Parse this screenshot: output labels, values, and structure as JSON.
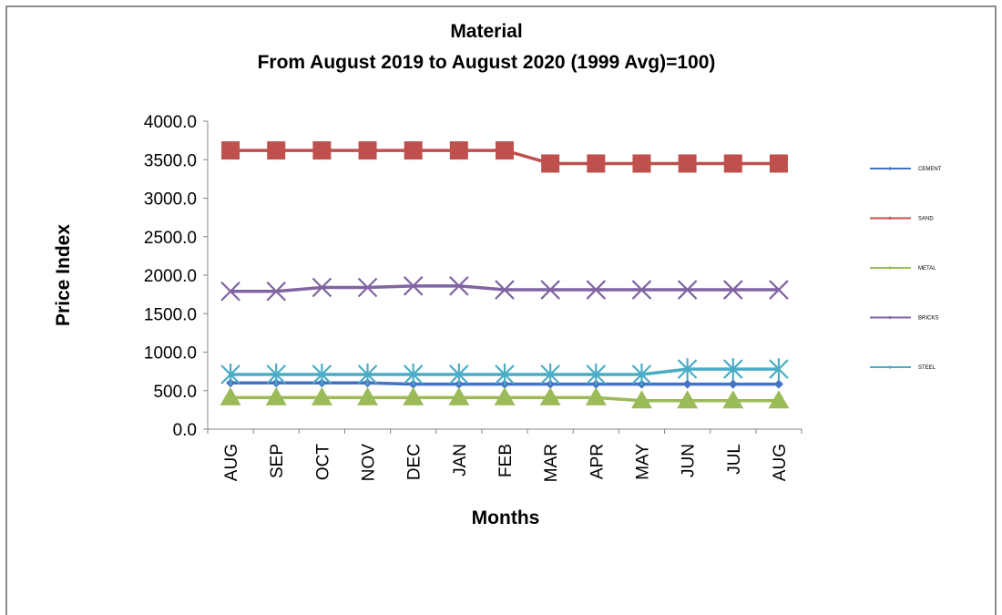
{
  "chart_data": {
    "type": "line",
    "title": "Material",
    "subtitle": "From  August  2019  to  August  2020 (1999 Avg)=100)",
    "xlabel": "Months",
    "ylabel": "Price Index",
    "ylim": [
      0,
      4000
    ],
    "yticks": [
      "0.0",
      "500.0",
      "1000.0",
      "1500.0",
      "2000.0",
      "2500.0",
      "3000.0",
      "3500.0",
      "4000.0"
    ],
    "categories": [
      "AUG",
      "SEP",
      "OCT",
      "NOV",
      "DEC",
      "JAN",
      "FEB",
      "MAR",
      "APR",
      "MAY",
      "JUN",
      "JUL",
      "AUG"
    ],
    "legend_position": "right",
    "grid": false,
    "series": [
      {
        "name": "CEMENT",
        "color": "#4472C4",
        "marker": "diamond",
        "values": [
          600,
          600,
          600,
          600,
          585,
          585,
          585,
          585,
          585,
          585,
          585,
          585,
          585
        ]
      },
      {
        "name": "SAND",
        "color": "#C0504D",
        "marker": "square",
        "values": [
          3620,
          3620,
          3620,
          3620,
          3620,
          3620,
          3620,
          3450,
          3450,
          3450,
          3450,
          3450,
          3450
        ]
      },
      {
        "name": "METAL",
        "color": "#9BBB59",
        "marker": "triangle",
        "values": [
          410,
          410,
          410,
          410,
          410,
          410,
          410,
          410,
          410,
          370,
          370,
          370,
          370
        ]
      },
      {
        "name": "BRICKS",
        "color": "#8064A2",
        "marker": "x",
        "values": [
          1790,
          1790,
          1840,
          1840,
          1860,
          1860,
          1810,
          1810,
          1810,
          1810,
          1810,
          1810,
          1810
        ]
      },
      {
        "name": "STEEL",
        "color": "#4BACC6",
        "marker": "star",
        "values": [
          710,
          710,
          710,
          710,
          710,
          710,
          710,
          710,
          710,
          710,
          780,
          780,
          780
        ]
      }
    ]
  }
}
